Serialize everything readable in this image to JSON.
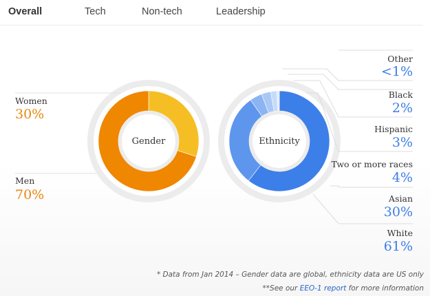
{
  "tabs": [
    {
      "label": "Overall",
      "active": true
    },
    {
      "label": "Tech",
      "active": false
    },
    {
      "label": "Non-tech",
      "active": false
    },
    {
      "label": "Leadership",
      "active": false
    }
  ],
  "colors": {
    "women": "#f6be25",
    "men": "#ef8700",
    "ethnicity_value": "#3c7ee8",
    "gender_value": "#e8860c",
    "ring": "#ececec",
    "leader": "#dcdcdc"
  },
  "chart_data": [
    {
      "type": "pie",
      "center_label": "Gender",
      "slices": [
        {
          "label": "Women",
          "value": 30,
          "display": "30%",
          "color": "#f6be25"
        },
        {
          "label": "Men",
          "value": 70,
          "display": "70%",
          "color": "#ef8700"
        }
      ]
    },
    {
      "type": "pie",
      "center_label": "Ethnicity",
      "slices": [
        {
          "label": "White",
          "value": 61,
          "display": "61%",
          "color": "#3d7fe8"
        },
        {
          "label": "Asian",
          "value": 30,
          "display": "30%",
          "color": "#5e96ee"
        },
        {
          "label": "Two or more races",
          "value": 4,
          "display": "4%",
          "color": "#8ab4f3"
        },
        {
          "label": "Hispanic",
          "value": 3,
          "display": "3%",
          "color": "#a9c8f6"
        },
        {
          "label": "Black",
          "value": 2,
          "display": "2%",
          "color": "#c6dbfa"
        },
        {
          "label": "Other",
          "value": 0.8,
          "display": "<1%",
          "color": "#e2ecfc"
        }
      ]
    }
  ],
  "footnotes": {
    "line1": "* Data from Jan 2014 – Gender data are global, ethnicity data are US only",
    "line2_prefix": "**See our ",
    "line2_link": "EEO-1 report",
    "line2_suffix": " for more information"
  }
}
